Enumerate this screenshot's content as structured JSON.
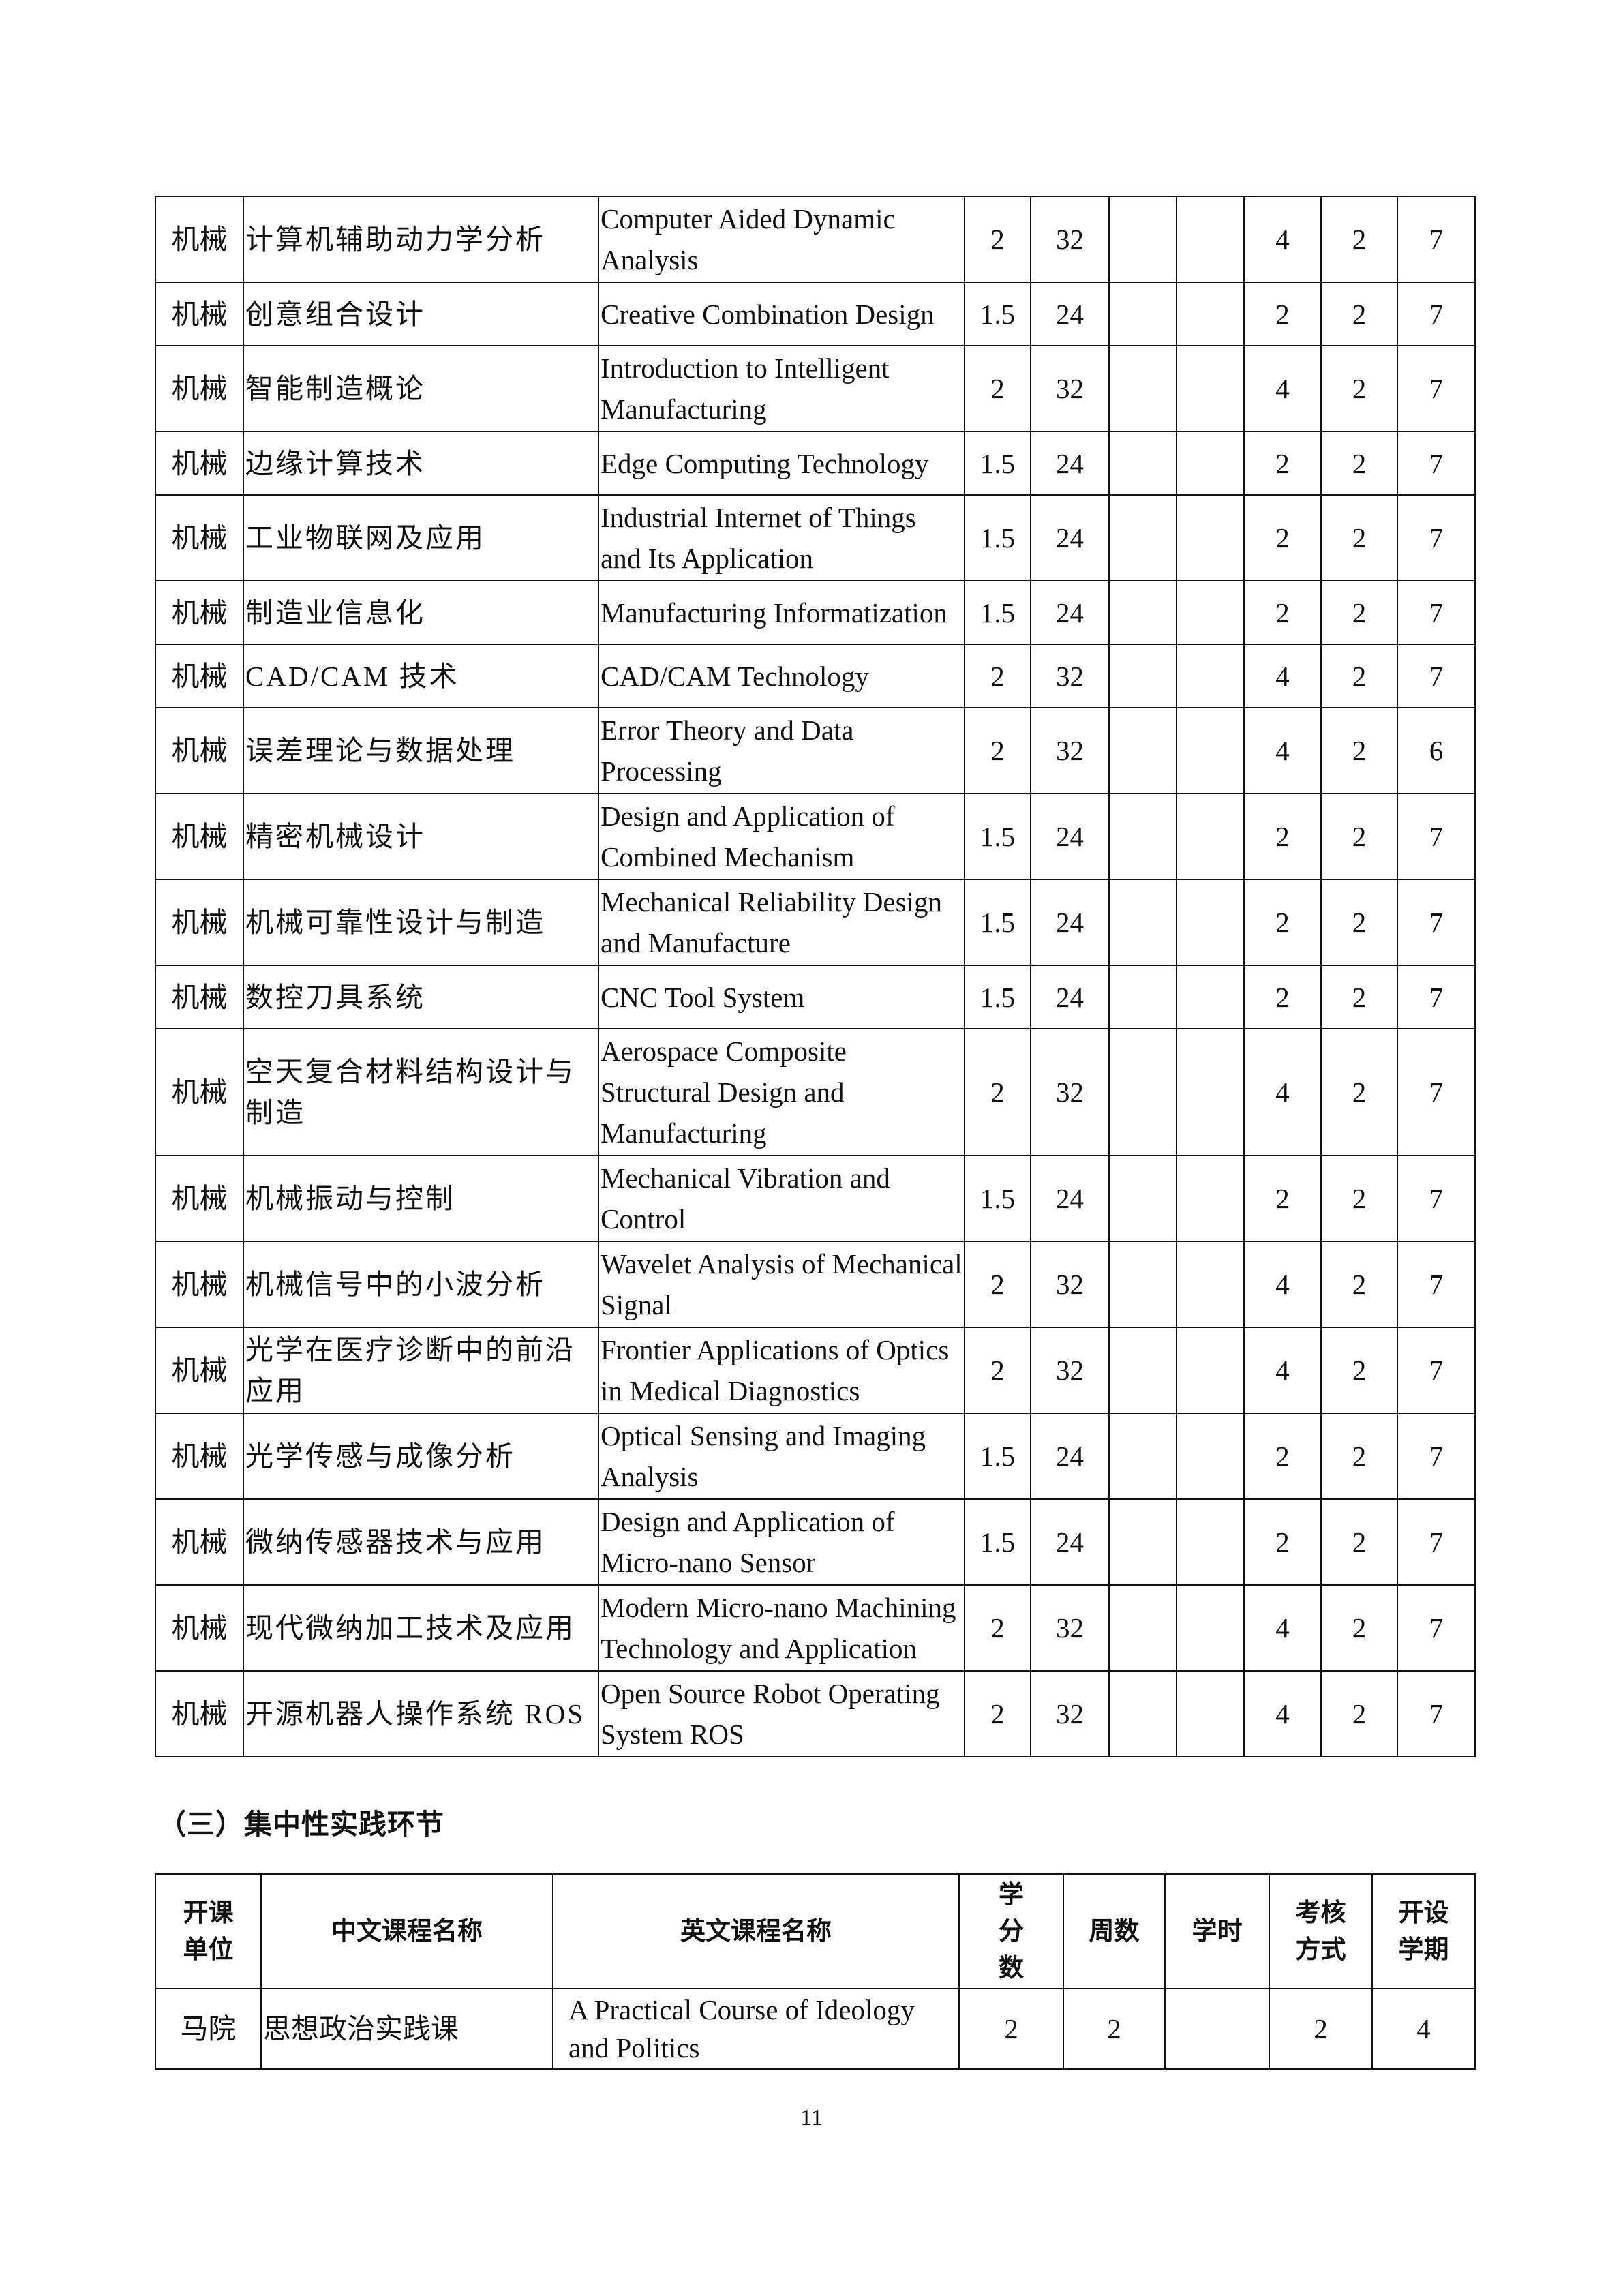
{
  "elective_table": {
    "rows": [
      {
        "dept": "机械",
        "zh": "计算机辅助动力学分析",
        "en": "Computer Aided Dynamic Analysis",
        "credits": "2",
        "hours": "32",
        "c5": "",
        "c6": "",
        "c7": "4",
        "c8": "2",
        "term": "7"
      },
      {
        "dept": "机械",
        "zh": "创意组合设计",
        "en": "Creative Combination Design",
        "credits": "1.5",
        "hours": "24",
        "c5": "",
        "c6": "",
        "c7": "2",
        "c8": "2",
        "term": "7"
      },
      {
        "dept": "机械",
        "zh": "智能制造概论",
        "en": "Introduction to Intelligent Manufacturing",
        "credits": "2",
        "hours": "32",
        "c5": "",
        "c6": "",
        "c7": "4",
        "c8": "2",
        "term": "7"
      },
      {
        "dept": "机械",
        "zh": "边缘计算技术",
        "en": "Edge Computing Technology",
        "credits": "1.5",
        "hours": "24",
        "c5": "",
        "c6": "",
        "c7": "2",
        "c8": "2",
        "term": "7"
      },
      {
        "dept": "机械",
        "zh": "工业物联网及应用",
        "en": "Industrial Internet of Things and Its Application",
        "credits": "1.5",
        "hours": "24",
        "c5": "",
        "c6": "",
        "c7": "2",
        "c8": "2",
        "term": "7"
      },
      {
        "dept": "机械",
        "zh": "制造业信息化",
        "en": "Manufacturing Informatization",
        "credits": "1.5",
        "hours": "24",
        "c5": "",
        "c6": "",
        "c7": "2",
        "c8": "2",
        "term": "7"
      },
      {
        "dept": "机械",
        "zh": "CAD/CAM 技术",
        "en": "CAD/CAM Technology",
        "credits": "2",
        "hours": "32",
        "c5": "",
        "c6": "",
        "c7": "4",
        "c8": "2",
        "term": "7"
      },
      {
        "dept": "机械",
        "zh": "误差理论与数据处理",
        "en": "Error Theory and Data Processing",
        "credits": "2",
        "hours": "32",
        "c5": "",
        "c6": "",
        "c7": "4",
        "c8": "2",
        "term": "6"
      },
      {
        "dept": "机械",
        "zh": "精密机械设计",
        "en": "Design and Application of Combined Mechanism",
        "credits": "1.5",
        "hours": "24",
        "c5": "",
        "c6": "",
        "c7": "2",
        "c8": "2",
        "term": "7"
      },
      {
        "dept": "机械",
        "zh": "机械可靠性设计与制造",
        "en": "Mechanical Reliability Design and Manufacture",
        "credits": "1.5",
        "hours": "24",
        "c5": "",
        "c6": "",
        "c7": "2",
        "c8": "2",
        "term": "7"
      },
      {
        "dept": "机械",
        "zh": "数控刀具系统",
        "en": "CNC Tool System",
        "credits": "1.5",
        "hours": "24",
        "c5": "",
        "c6": "",
        "c7": "2",
        "c8": "2",
        "term": "7"
      },
      {
        "dept": "机械",
        "zh": "空天复合材料结构设计与制造",
        "en": "Aerospace Composite Structural Design and Manufacturing",
        "credits": "2",
        "hours": "32",
        "c5": "",
        "c6": "",
        "c7": "4",
        "c8": "2",
        "term": "7"
      },
      {
        "dept": "机械",
        "zh": "机械振动与控制",
        "en": "Mechanical Vibration and Control",
        "credits": "1.5",
        "hours": "24",
        "c5": "",
        "c6": "",
        "c7": "2",
        "c8": "2",
        "term": "7"
      },
      {
        "dept": "机械",
        "zh": "机械信号中的小波分析",
        "en": "Wavelet Analysis of Mechanical Signal",
        "credits": "2",
        "hours": "32",
        "c5": "",
        "c6": "",
        "c7": "4",
        "c8": "2",
        "term": "7"
      },
      {
        "dept": "机械",
        "zh": "光学在医疗诊断中的前沿应用",
        "en": "Frontier Applications of Optics in Medical Diagnostics",
        "credits": "2",
        "hours": "32",
        "c5": "",
        "c6": "",
        "c7": "4",
        "c8": "2",
        "term": "7"
      },
      {
        "dept": "机械",
        "zh": "光学传感与成像分析",
        "en": "Optical Sensing and Imaging Analysis",
        "credits": "1.5",
        "hours": "24",
        "c5": "",
        "c6": "",
        "c7": "2",
        "c8": "2",
        "term": "7"
      },
      {
        "dept": "机械",
        "zh": "微纳传感器技术与应用",
        "en": "Design and Application of Micro-nano Sensor",
        "credits": "1.5",
        "hours": "24",
        "c5": "",
        "c6": "",
        "c7": "2",
        "c8": "2",
        "term": "7"
      },
      {
        "dept": "机械",
        "zh": "现代微纳加工技术及应用",
        "en": "Modern Micro-nano Machining Technology and Application",
        "credits": "2",
        "hours": "32",
        "c5": "",
        "c6": "",
        "c7": "4",
        "c8": "2",
        "term": "7"
      },
      {
        "dept": "机械",
        "zh": "开源机器人操作系统 ROS",
        "en": "Open Source Robot Operating System ROS",
        "credits": "2",
        "hours": "32",
        "c5": "",
        "c6": "",
        "c7": "4",
        "c8": "2",
        "term": "7"
      }
    ]
  },
  "section_title": "（三）集中性实践环节",
  "practice_table": {
    "headers": [
      "开课\n单位",
      "中文课程名称",
      "英文课程名称",
      "学\n分\n数",
      "周数",
      "学时",
      "考核\n方式",
      "开设\n学期"
    ],
    "rows": [
      {
        "dept": "马院",
        "zh": "思想政治实践课",
        "en": "A Practical Course of Ideology and Politics",
        "credits": "2",
        "weeks": "2",
        "hours": "",
        "assess": "2",
        "term": "4"
      }
    ]
  },
  "page_number": "11"
}
